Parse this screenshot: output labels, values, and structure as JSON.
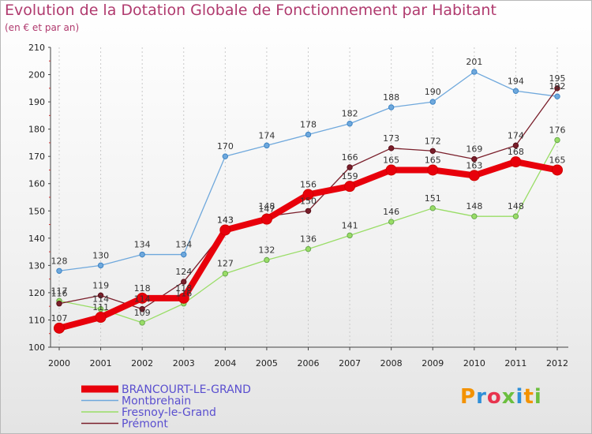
{
  "chart_data": {
    "type": "line",
    "title": "Evolution de la Dotation Globale de Fonctionnement par Habitant",
    "subtitle": "(en € et par an)",
    "x": [
      "2000",
      "2001",
      "2002",
      "2003",
      "2004",
      "2005",
      "2006",
      "2007",
      "2008",
      "2009",
      "2010",
      "2011",
      "2012"
    ],
    "ylim": [
      100,
      210
    ],
    "yticks": [
      100,
      110,
      120,
      130,
      140,
      150,
      160,
      170,
      180,
      190,
      200,
      210
    ],
    "series": [
      {
        "name": "BRANCOURT-LE-GRAND",
        "color": "#e8000b",
        "values": [
          107,
          111,
          118,
          118,
          143,
          147,
          156,
          159,
          165,
          165,
          163,
          168,
          165
        ]
      },
      {
        "name": "Montbrehain",
        "color": "#6fa8dc",
        "values": [
          128,
          130,
          134,
          134,
          170,
          174,
          178,
          182,
          188,
          190,
          201,
          194,
          192
        ]
      },
      {
        "name": "Fresnoy-le-Grand",
        "color": "#99dd66",
        "values": [
          117,
          114,
          109,
          116,
          127,
          132,
          136,
          141,
          146,
          151,
          148,
          148,
          176
        ]
      },
      {
        "name": "Prémont",
        "color": "#7a1f2b",
        "values": [
          116,
          119,
          114,
          124,
          143,
          148,
          150,
          166,
          173,
          172,
          169,
          174,
          195
        ]
      }
    ]
  },
  "logo": {
    "text": "Proxiti",
    "colors": [
      "#f39200",
      "#2f8fd8",
      "#e8344e",
      "#6cbf3f",
      "#2f8fd8",
      "#f39200",
      "#6cbf3f"
    ]
  }
}
